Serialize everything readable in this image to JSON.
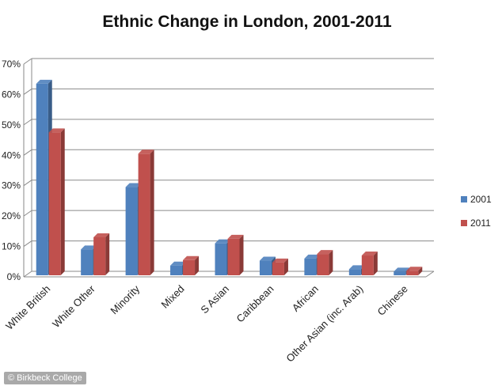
{
  "credit": "© Birkbeck College",
  "chart_data": {
    "type": "bar",
    "title": "Ethnic Change in London, 2001-2011",
    "xlabel": "",
    "ylabel": "",
    "ylim": [
      0,
      70
    ],
    "yticks": [
      "0%",
      "10%",
      "20%",
      "30%",
      "40%",
      "50%",
      "60%",
      "70%"
    ],
    "grid": true,
    "legend": "right",
    "categories": [
      "White British",
      "White Other",
      "Minority",
      "Mixed",
      "S Asian",
      "Caribbean",
      "African",
      "Other Asian (inc. Arab)",
      "Chinese"
    ],
    "series": [
      {
        "name": "2001",
        "color": "#4f81bd",
        "values": [
          63,
          8.5,
          29,
          3.2,
          10.5,
          4.8,
          5.5,
          2,
          1.2
        ]
      },
      {
        "name": "2011",
        "color": "#c0504d",
        "values": [
          47,
          12.5,
          40,
          5,
          12,
          4.2,
          7,
          6.5,
          1.5
        ]
      }
    ]
  }
}
